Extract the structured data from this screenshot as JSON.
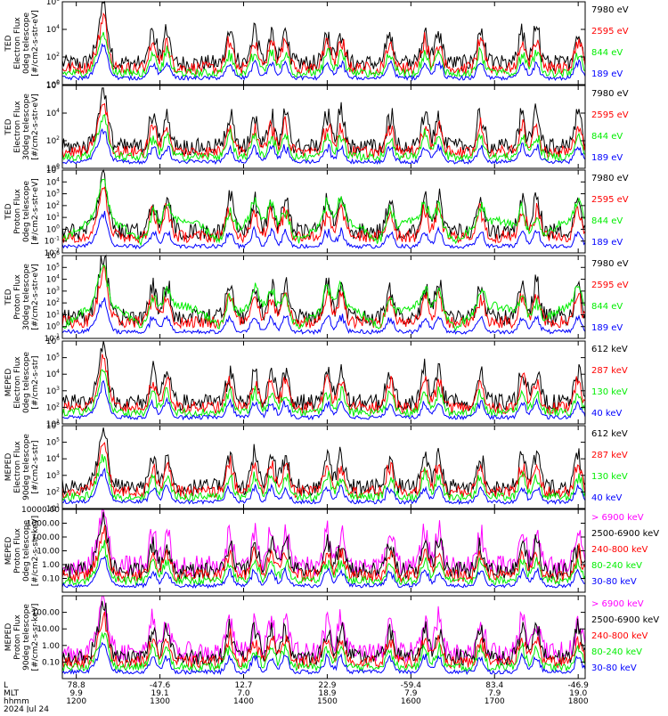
{
  "figure": {
    "date_label": "2024 Jul 24",
    "footer_row_labels": [
      "L",
      "MLT",
      "hhmm"
    ]
  },
  "time_axis": {
    "start_hhmm": 1150,
    "end_hhmm": 1805,
    "ticks": [
      {
        "hhmm": 1200,
        "lat": "78.8",
        "mlt": "9.9",
        "label": "1200"
      },
      {
        "hhmm": 1300,
        "lat": "-47.6",
        "mlt": "19.1",
        "label": "1300"
      },
      {
        "hhmm": 1400,
        "lat": "12.7",
        "mlt": "7.0",
        "label": "1400"
      },
      {
        "hhmm": 1500,
        "lat": "22.9",
        "mlt": "18.9",
        "label": "1500"
      },
      {
        "hhmm": 1600,
        "lat": "-59.4",
        "mlt": "7.9",
        "label": "1600"
      },
      {
        "hhmm": 1700,
        "lat": "83.4",
        "mlt": "7.9",
        "label": "1700"
      },
      {
        "hhmm": 1800,
        "lat": "-46.9",
        "mlt": "19.0",
        "label": "1800"
      }
    ]
  },
  "colors": {
    "blue": "#0000ff",
    "red": "#ff0000",
    "green": "#00ee00",
    "black": "#000000",
    "magenta": "#ff00ff"
  },
  "chart_data": [
    {
      "type": "line",
      "ylabel": [
        "TED",
        "Electron Flux",
        "0deg telescope",
        "[#/cm2-s-str-eV]"
      ],
      "ylim": [
        1,
        1000000
      ],
      "log": true,
      "ytick_labels": [
        "10^0",
        "10^2",
        "10^4",
        "10^6"
      ],
      "series": [
        {
          "name": "7980 eV",
          "color": "black"
        },
        {
          "name": "2595 eV",
          "color": "red"
        },
        {
          "name": "844 eV",
          "color": "green"
        },
        {
          "name": "189 eV",
          "color": "blue"
        }
      ]
    },
    {
      "type": "line",
      "ylabel": [
        "TED",
        "Electron Flux",
        "30deg telescope",
        "[#/cm2-s-str-eV]"
      ],
      "ylim": [
        1,
        1000000
      ],
      "log": true,
      "ytick_labels": [
        "10^0",
        "10^2",
        "10^4",
        "10^6"
      ],
      "series": [
        {
          "name": "7980 eV",
          "color": "black"
        },
        {
          "name": "2595 eV",
          "color": "red"
        },
        {
          "name": "844 eV",
          "color": "green"
        },
        {
          "name": "189 eV",
          "color": "blue"
        }
      ]
    },
    {
      "type": "line",
      "ylabel": [
        "TED",
        "Proton Flux",
        "0deg telescope",
        "[#/cm2-s-str-eV]"
      ],
      "ylim": [
        0.01,
        100000
      ],
      "log": true,
      "ytick_labels": [
        "10^-2",
        "10^-1",
        "10^0",
        "10^1",
        "10^2",
        "10^3",
        "10^4",
        "10^5"
      ],
      "series": [
        {
          "name": "7980 eV",
          "color": "black"
        },
        {
          "name": "2595 eV",
          "color": "red"
        },
        {
          "name": "844 eV",
          "color": "green"
        },
        {
          "name": "189 eV",
          "color": "blue"
        }
      ]
    },
    {
      "type": "line",
      "ylabel": [
        "TED",
        "Proton Flux",
        "30deg telescope",
        "[#/cm2-s-str-eV]"
      ],
      "ylim": [
        0.1,
        1000000
      ],
      "log": true,
      "ytick_labels": [
        "10^-1",
        "10^0",
        "10^1",
        "10^2",
        "10^3",
        "10^4",
        "10^5",
        "10^6"
      ],
      "series": [
        {
          "name": "7980 eV",
          "color": "black"
        },
        {
          "name": "2595 eV",
          "color": "red"
        },
        {
          "name": "844 eV",
          "color": "green"
        },
        {
          "name": "189 eV",
          "color": "blue"
        }
      ]
    },
    {
      "type": "line",
      "ylabel": [
        "MEPED",
        "Electron Flux",
        "0deg telescope",
        "[#/cm2-s-str]"
      ],
      "ylim": [
        10,
        1000000
      ],
      "log": true,
      "ytick_labels": [
        "10^1",
        "10^2",
        "10^3",
        "10^4",
        "10^5",
        "10^6"
      ],
      "series": [
        {
          "name": "612 keV",
          "color": "black"
        },
        {
          "name": "287 keV",
          "color": "red"
        },
        {
          "name": "130 keV",
          "color": "green"
        },
        {
          "name": "40 keV",
          "color": "blue"
        }
      ]
    },
    {
      "type": "line",
      "ylabel": [
        "MEPED",
        "Electron Flux",
        "90deg telescope",
        "[#/cm2-s-str]"
      ],
      "ylim": [
        10,
        1000000
      ],
      "log": true,
      "ytick_labels": [
        "10^1",
        "10^2",
        "10^3",
        "10^4",
        "10^5",
        "10^6"
      ],
      "series": [
        {
          "name": "612 keV",
          "color": "black"
        },
        {
          "name": "287 keV",
          "color": "red"
        },
        {
          "name": "130 keV",
          "color": "green"
        },
        {
          "name": "40 keV",
          "color": "blue"
        }
      ]
    },
    {
      "type": "line",
      "ylabel": [
        "MEPED",
        "Proton Flux",
        "0deg telescope",
        "[#/cm2-s-str-keV]"
      ],
      "ylim": [
        0.01,
        10000
      ],
      "log": true,
      "ytick_labels": [
        "0.10",
        "1.00",
        "10.00",
        "100.00",
        "1000.00",
        "10000.00"
      ],
      "series": [
        {
          "name": "> 6900 keV",
          "color": "magenta"
        },
        {
          "name": "2500-6900 keV",
          "color": "black"
        },
        {
          "name": "240-800 keV",
          "color": "red"
        },
        {
          "name": "80-240 keV",
          "color": "green"
        },
        {
          "name": "30-80 keV",
          "color": "blue"
        }
      ]
    },
    {
      "type": "line",
      "ylabel": [
        "MEPED",
        "Proton Flux",
        "90deg telescope",
        "[#/cm2-s-sr-keV]"
      ],
      "ylim": [
        0.01,
        1000
      ],
      "log": true,
      "ytick_labels": [
        "0.10",
        "1.00",
        "10.00",
        "100.00"
      ],
      "series": [
        {
          "name": "> 6900 keV",
          "color": "magenta"
        },
        {
          "name": "2500-6900 keV",
          "color": "black"
        },
        {
          "name": "240-800 keV",
          "color": "red"
        },
        {
          "name": "80-240 keV",
          "color": "green"
        },
        {
          "name": "30-80 keV",
          "color": "blue"
        }
      ]
    }
  ]
}
